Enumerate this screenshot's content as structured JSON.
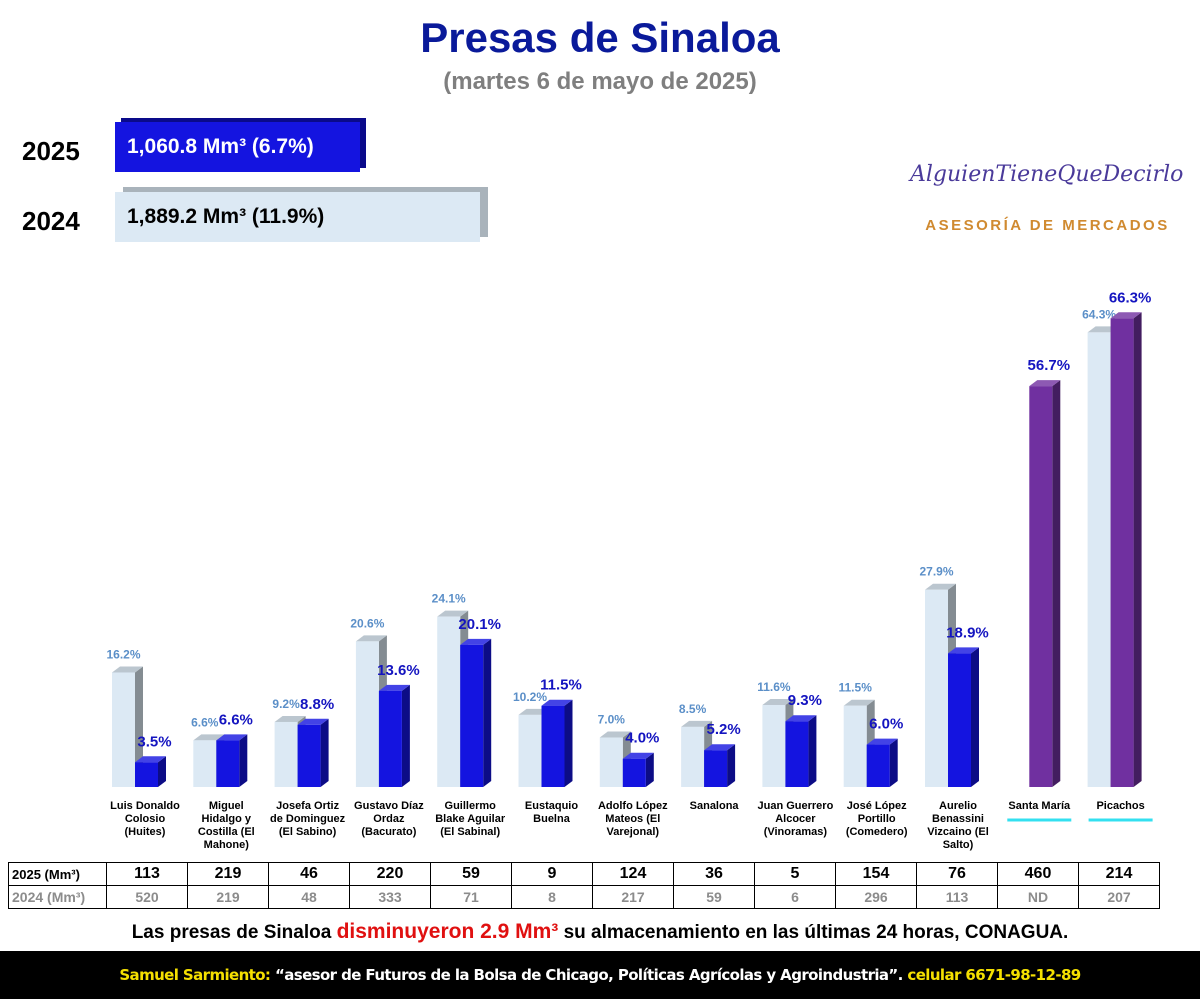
{
  "chart_data": {
    "type": "bar",
    "title": "Presas de Sinaloa",
    "subtitle": "(martes 6 de mayo de 2025)",
    "categories": [
      "Luis Donaldo Colosio (Huites)",
      "Miguel Hidalgo y Costilla (El Mahone)",
      "Josefa Ortiz de Dominguez (El Sabino)",
      "Gustavo Díaz Ordaz (Bacurato)",
      "Guillermo Blake Aguilar (El Sabinal)",
      "Eustaquio Buelna",
      "Adolfo López Mateos (El Varejonal)",
      "Sanalona",
      "Juan Guerrero Alcocer (Vinoramas)",
      "José López Portillo (Comedero)",
      "Aurelio Benassini Vizcaino (El Salto)",
      "Santa María",
      "Picachos"
    ],
    "series": [
      {
        "name": "2024",
        "color": "#dce9f4",
        "values": [
          16.2,
          6.6,
          9.2,
          20.6,
          24.1,
          10.2,
          7.0,
          8.5,
          11.6,
          11.5,
          27.9,
          null,
          64.3
        ],
        "value_labels": [
          "16.2%",
          "6.6%",
          "9.2%",
          "20.6%",
          "24.1%",
          "10.2%",
          "7.0%",
          "8.5%",
          "11.6%",
          "11.5%",
          "27.9%",
          null,
          "64.3%"
        ]
      },
      {
        "name": "2025",
        "color": "#1414e0",
        "colors": [
          "#1414e0",
          "#1414e0",
          "#1414e0",
          "#1414e0",
          "#1414e0",
          "#1414e0",
          "#1414e0",
          "#1414e0",
          "#1414e0",
          "#1414e0",
          "#1414e0",
          "#7030a0",
          "#7030a0"
        ],
        "values": [
          3.5,
          6.6,
          8.8,
          13.6,
          20.1,
          11.5,
          4.0,
          5.2,
          9.3,
          6.0,
          18.9,
          56.7,
          66.3
        ],
        "value_labels": [
          "3.5%",
          "6.6%",
          "8.8%",
          "13.6%",
          "20.1%",
          "11.5%",
          "4.0%",
          "5.2%",
          "9.3%",
          "6.0%",
          "18.9%",
          "56.7%",
          "66.3%"
        ]
      }
    ]
  },
  "summary": [
    {
      "year": "2025",
      "text": "1,060.8 Mm³ (6.7%)"
    },
    {
      "year": "2024",
      "text": "1,889.2 Mm³ (11.9%)"
    }
  ],
  "logo": {
    "name": "AlguienTieneQueDecirlo",
    "tagline": "ASESORÍA DE MERCADOS"
  },
  "table": {
    "rows": [
      {
        "label": "2025 (Mm³)",
        "values": [
          113,
          219,
          46,
          220,
          59,
          9,
          124,
          36,
          5,
          154,
          76,
          460,
          214
        ]
      },
      {
        "label": "2024 (Mm³)",
        "values": [
          520,
          219,
          48,
          333,
          71,
          8,
          217,
          59,
          6,
          296,
          113,
          "ND",
          207
        ]
      }
    ]
  },
  "note": {
    "before": "Las presas de Sinaloa",
    "highlight": "disminuyeron 2.9 Mm³",
    "after": "su almacenamiento en las últimas 24 horas, CONAGUA."
  },
  "footer": {
    "author": "Samuel Sarmiento:",
    "text": "“asesor de Futuros de la Bolsa de Chicago, Políticas Agrícolas y Agroindustria”.",
    "contact": "celular 6671-98-12-89"
  }
}
